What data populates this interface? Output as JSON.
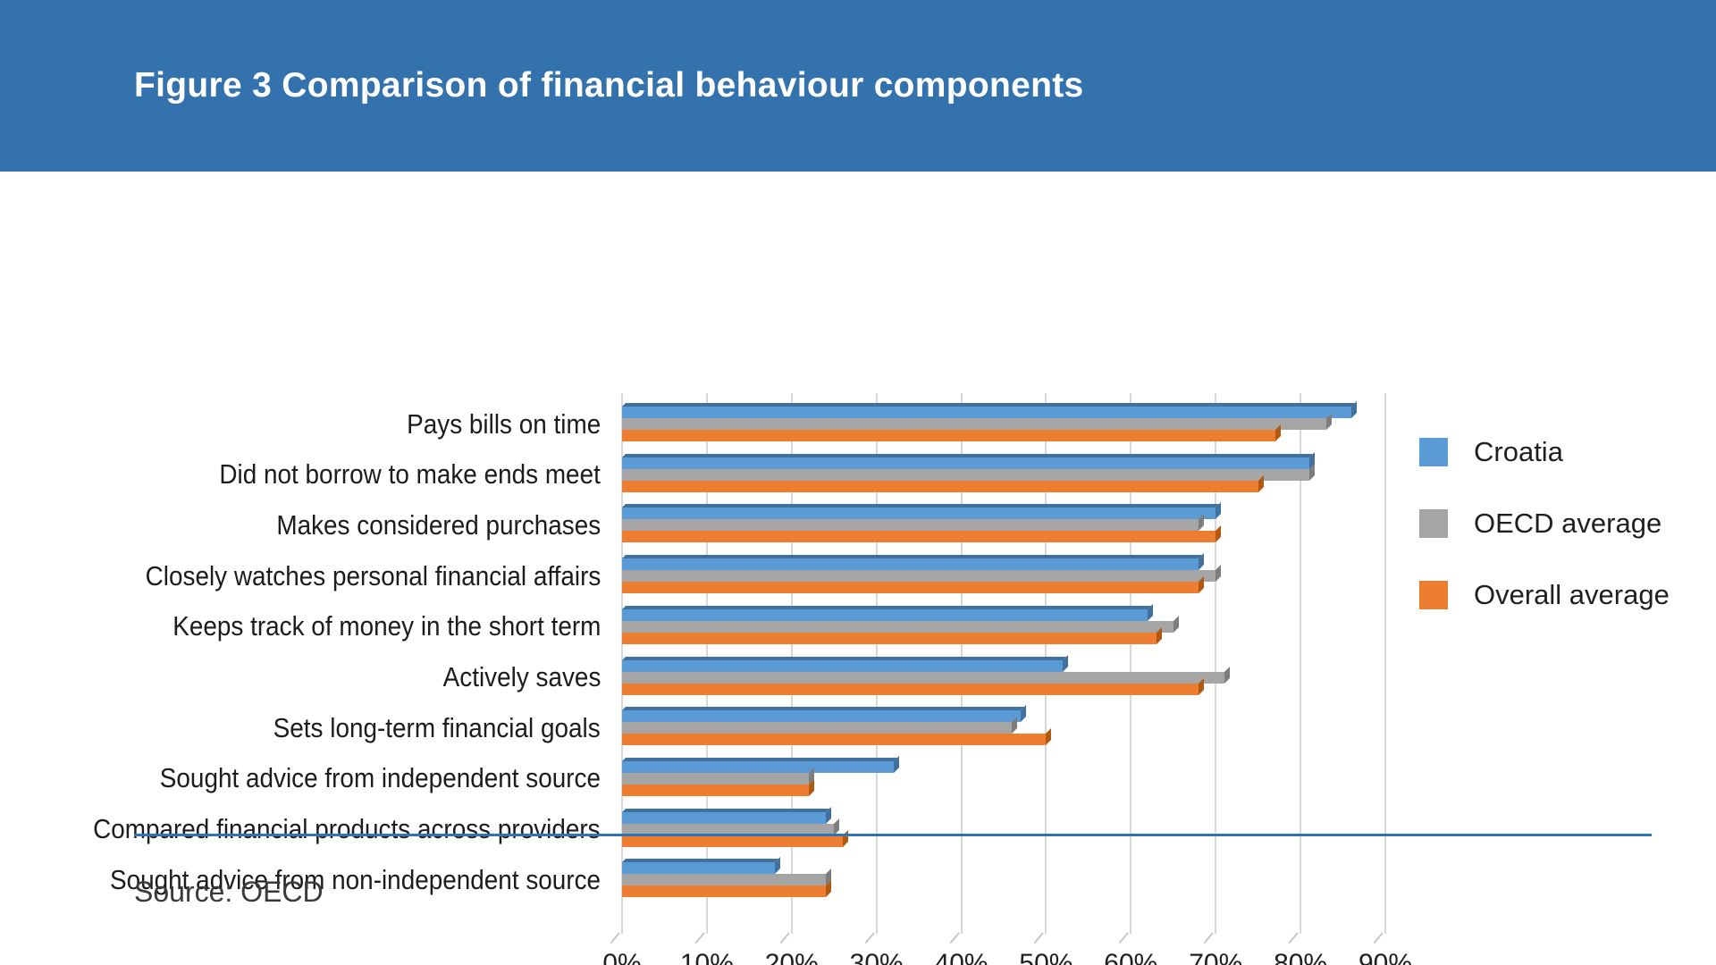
{
  "header": {
    "title": "Figure 3 Comparison of financial behaviour components"
  },
  "chart_data": {
    "type": "bar",
    "orientation": "horizontal",
    "title": "Figure 3 Comparison of financial behaviour components",
    "categories": [
      "Pays bills on time",
      "Did not borrow to make ends meet",
      "Makes considered purchases",
      "Closely watches personal financial affairs",
      "Keeps track of money in the short term",
      "Actively saves",
      "Sets long-term financial goals",
      "Sought advice from independent source",
      "Compared financial products across providers",
      "Sought advice from non-independent source"
    ],
    "series": [
      {
        "name": "Croatia",
        "color": "#5B9BD5",
        "edge_color": "#41719C",
        "values": [
          86,
          81,
          70,
          68,
          62,
          52,
          47,
          32,
          24,
          18
        ]
      },
      {
        "name": "OECD average",
        "color": "#A5A5A5",
        "edge_color": "#7D7D7D",
        "values": [
          83,
          81,
          68,
          70,
          65,
          71,
          46,
          22,
          25,
          24
        ]
      },
      {
        "name": "Overall average",
        "color": "#ED7D31",
        "edge_color": "#B15811",
        "values": [
          77,
          75,
          70,
          68,
          63,
          68,
          50,
          22,
          26,
          24
        ]
      }
    ],
    "x_ticks": [
      "0%",
      "10%",
      "20%",
      "30%",
      "40%",
      "50%",
      "60%",
      "70%",
      "80%",
      "90%"
    ],
    "xlim": [
      0,
      90
    ],
    "xlabel": "",
    "ylabel": "",
    "grid": true,
    "legend_position": "right"
  },
  "footer": {
    "source": "Source: OECD"
  },
  "ui_colors": {
    "header_bg": "#3372AD",
    "gridline": "#D8D8D8",
    "separator_line": "#2E75B6",
    "text": "#1F1F1F"
  }
}
